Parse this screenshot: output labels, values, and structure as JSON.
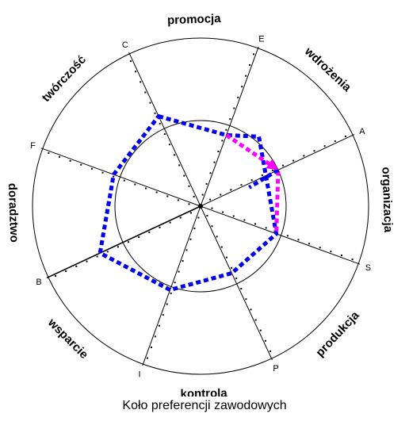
{
  "caption": "Koło preferencji zawodowych",
  "spokes": [
    {
      "letter": "A",
      "angle": 25
    },
    {
      "letter": "C",
      "angle": 115
    },
    {
      "letter": "E",
      "angle": 70
    },
    {
      "letter": "F",
      "angle": 160
    },
    {
      "letter": "B",
      "angle": 205
    },
    {
      "letter": "I",
      "angle": 250
    },
    {
      "letter": "P",
      "angle": 295
    },
    {
      "letter": "S",
      "angle": 340
    }
  ],
  "sectors": [
    {
      "label": "promocja",
      "angle": 92
    },
    {
      "label": "wdrożenia",
      "angle": 47
    },
    {
      "label": "organizacja",
      "angle": 2
    },
    {
      "label": "produkcja",
      "angle": -43
    },
    {
      "label": "kontrola",
      "angle": -89
    },
    {
      "label": "wsparcie",
      "angle": -135
    },
    {
      "label": "doradztwo",
      "angle": 182
    },
    {
      "label": "twórczość",
      "angle": 137
    }
  ],
  "chart_data": {
    "type": "radar",
    "series": [
      {
        "color": "#0000ee",
        "style": "dotted-thick",
        "points": [
          {
            "angle": 115,
            "r": 0.59
          },
          {
            "angle": 70,
            "r": 0.45
          },
          {
            "angle": 50,
            "r": 0.54
          },
          {
            "angle": 340,
            "r": 0.48
          },
          {
            "angle": 295,
            "r": 0.44
          },
          {
            "angle": 250,
            "r": 0.53
          },
          {
            "angle": 205,
            "r": 0.66
          },
          {
            "angle": 160,
            "r": 0.55
          }
        ]
      },
      {
        "color": "#ff00ff",
        "style": "dotted-thick",
        "points": [
          {
            "angle": 70,
            "r": 0.45
          },
          {
            "angle": 25,
            "r": 0.51
          },
          {
            "angle": 340,
            "r": 0.48
          }
        ]
      },
      {
        "color": "#0000ee",
        "style": "dotted-thick",
        "points": [
          {
            "angle": 25,
            "r": 0.51
          },
          {
            "angle": 21,
            "r": 0.31
          }
        ]
      }
    ]
  }
}
